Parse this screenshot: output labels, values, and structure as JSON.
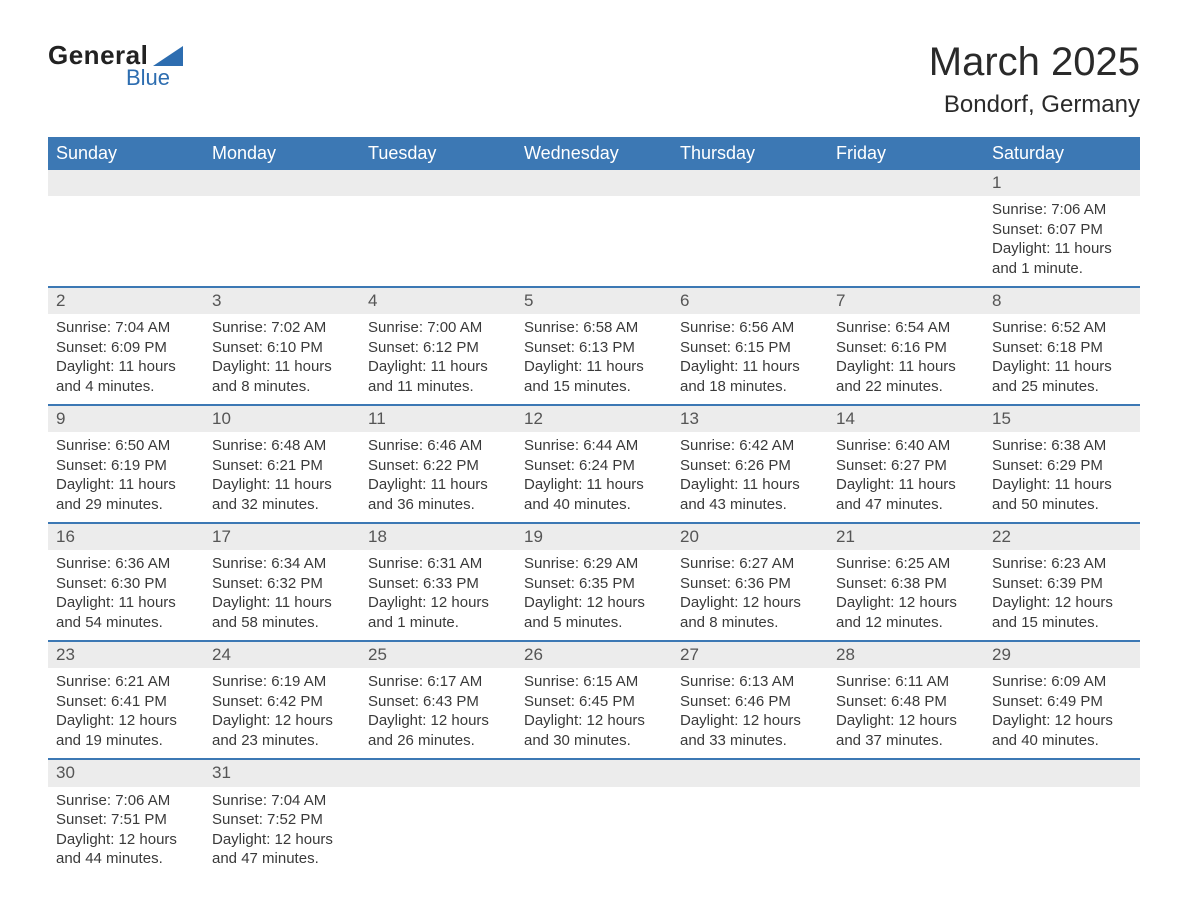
{
  "brand": {
    "line1": "General",
    "line2": "Blue",
    "logo_colors": {
      "text": "#222222",
      "accent": "#2d6db0",
      "triangle": "#2d6db0"
    }
  },
  "title": {
    "month": "March 2025",
    "location": "Bondorf, Germany"
  },
  "style": {
    "header_bg": "#3c78b4",
    "header_text": "#ffffff",
    "daynum_bg": "#ececec",
    "week_divider": "#3c78b4",
    "body_text": "#3a3a3a",
    "page_bg": "#ffffff",
    "font_family": "Arial",
    "month_fontsize_pt": 30,
    "location_fontsize_pt": 18,
    "header_fontsize_pt": 14,
    "cell_fontsize_pt": 11
  },
  "calendar": {
    "type": "table",
    "columns": [
      "Sunday",
      "Monday",
      "Tuesday",
      "Wednesday",
      "Thursday",
      "Friday",
      "Saturday"
    ],
    "weeks": [
      [
        null,
        null,
        null,
        null,
        null,
        null,
        {
          "n": "1",
          "sr": "Sunrise: 7:06 AM",
          "ss": "Sunset: 6:07 PM",
          "dl": "Daylight: 11 hours and 1 minute."
        }
      ],
      [
        {
          "n": "2",
          "sr": "Sunrise: 7:04 AM",
          "ss": "Sunset: 6:09 PM",
          "dl": "Daylight: 11 hours and 4 minutes."
        },
        {
          "n": "3",
          "sr": "Sunrise: 7:02 AM",
          "ss": "Sunset: 6:10 PM",
          "dl": "Daylight: 11 hours and 8 minutes."
        },
        {
          "n": "4",
          "sr": "Sunrise: 7:00 AM",
          "ss": "Sunset: 6:12 PM",
          "dl": "Daylight: 11 hours and 11 minutes."
        },
        {
          "n": "5",
          "sr": "Sunrise: 6:58 AM",
          "ss": "Sunset: 6:13 PM",
          "dl": "Daylight: 11 hours and 15 minutes."
        },
        {
          "n": "6",
          "sr": "Sunrise: 6:56 AM",
          "ss": "Sunset: 6:15 PM",
          "dl": "Daylight: 11 hours and 18 minutes."
        },
        {
          "n": "7",
          "sr": "Sunrise: 6:54 AM",
          "ss": "Sunset: 6:16 PM",
          "dl": "Daylight: 11 hours and 22 minutes."
        },
        {
          "n": "8",
          "sr": "Sunrise: 6:52 AM",
          "ss": "Sunset: 6:18 PM",
          "dl": "Daylight: 11 hours and 25 minutes."
        }
      ],
      [
        {
          "n": "9",
          "sr": "Sunrise: 6:50 AM",
          "ss": "Sunset: 6:19 PM",
          "dl": "Daylight: 11 hours and 29 minutes."
        },
        {
          "n": "10",
          "sr": "Sunrise: 6:48 AM",
          "ss": "Sunset: 6:21 PM",
          "dl": "Daylight: 11 hours and 32 minutes."
        },
        {
          "n": "11",
          "sr": "Sunrise: 6:46 AM",
          "ss": "Sunset: 6:22 PM",
          "dl": "Daylight: 11 hours and 36 minutes."
        },
        {
          "n": "12",
          "sr": "Sunrise: 6:44 AM",
          "ss": "Sunset: 6:24 PM",
          "dl": "Daylight: 11 hours and 40 minutes."
        },
        {
          "n": "13",
          "sr": "Sunrise: 6:42 AM",
          "ss": "Sunset: 6:26 PM",
          "dl": "Daylight: 11 hours and 43 minutes."
        },
        {
          "n": "14",
          "sr": "Sunrise: 6:40 AM",
          "ss": "Sunset: 6:27 PM",
          "dl": "Daylight: 11 hours and 47 minutes."
        },
        {
          "n": "15",
          "sr": "Sunrise: 6:38 AM",
          "ss": "Sunset: 6:29 PM",
          "dl": "Daylight: 11 hours and 50 minutes."
        }
      ],
      [
        {
          "n": "16",
          "sr": "Sunrise: 6:36 AM",
          "ss": "Sunset: 6:30 PM",
          "dl": "Daylight: 11 hours and 54 minutes."
        },
        {
          "n": "17",
          "sr": "Sunrise: 6:34 AM",
          "ss": "Sunset: 6:32 PM",
          "dl": "Daylight: 11 hours and 58 minutes."
        },
        {
          "n": "18",
          "sr": "Sunrise: 6:31 AM",
          "ss": "Sunset: 6:33 PM",
          "dl": "Daylight: 12 hours and 1 minute."
        },
        {
          "n": "19",
          "sr": "Sunrise: 6:29 AM",
          "ss": "Sunset: 6:35 PM",
          "dl": "Daylight: 12 hours and 5 minutes."
        },
        {
          "n": "20",
          "sr": "Sunrise: 6:27 AM",
          "ss": "Sunset: 6:36 PM",
          "dl": "Daylight: 12 hours and 8 minutes."
        },
        {
          "n": "21",
          "sr": "Sunrise: 6:25 AM",
          "ss": "Sunset: 6:38 PM",
          "dl": "Daylight: 12 hours and 12 minutes."
        },
        {
          "n": "22",
          "sr": "Sunrise: 6:23 AM",
          "ss": "Sunset: 6:39 PM",
          "dl": "Daylight: 12 hours and 15 minutes."
        }
      ],
      [
        {
          "n": "23",
          "sr": "Sunrise: 6:21 AM",
          "ss": "Sunset: 6:41 PM",
          "dl": "Daylight: 12 hours and 19 minutes."
        },
        {
          "n": "24",
          "sr": "Sunrise: 6:19 AM",
          "ss": "Sunset: 6:42 PM",
          "dl": "Daylight: 12 hours and 23 minutes."
        },
        {
          "n": "25",
          "sr": "Sunrise: 6:17 AM",
          "ss": "Sunset: 6:43 PM",
          "dl": "Daylight: 12 hours and 26 minutes."
        },
        {
          "n": "26",
          "sr": "Sunrise: 6:15 AM",
          "ss": "Sunset: 6:45 PM",
          "dl": "Daylight: 12 hours and 30 minutes."
        },
        {
          "n": "27",
          "sr": "Sunrise: 6:13 AM",
          "ss": "Sunset: 6:46 PM",
          "dl": "Daylight: 12 hours and 33 minutes."
        },
        {
          "n": "28",
          "sr": "Sunrise: 6:11 AM",
          "ss": "Sunset: 6:48 PM",
          "dl": "Daylight: 12 hours and 37 minutes."
        },
        {
          "n": "29",
          "sr": "Sunrise: 6:09 AM",
          "ss": "Sunset: 6:49 PM",
          "dl": "Daylight: 12 hours and 40 minutes."
        }
      ],
      [
        {
          "n": "30",
          "sr": "Sunrise: 7:06 AM",
          "ss": "Sunset: 7:51 PM",
          "dl": "Daylight: 12 hours and 44 minutes."
        },
        {
          "n": "31",
          "sr": "Sunrise: 7:04 AM",
          "ss": "Sunset: 7:52 PM",
          "dl": "Daylight: 12 hours and 47 minutes."
        },
        null,
        null,
        null,
        null,
        null
      ]
    ]
  }
}
